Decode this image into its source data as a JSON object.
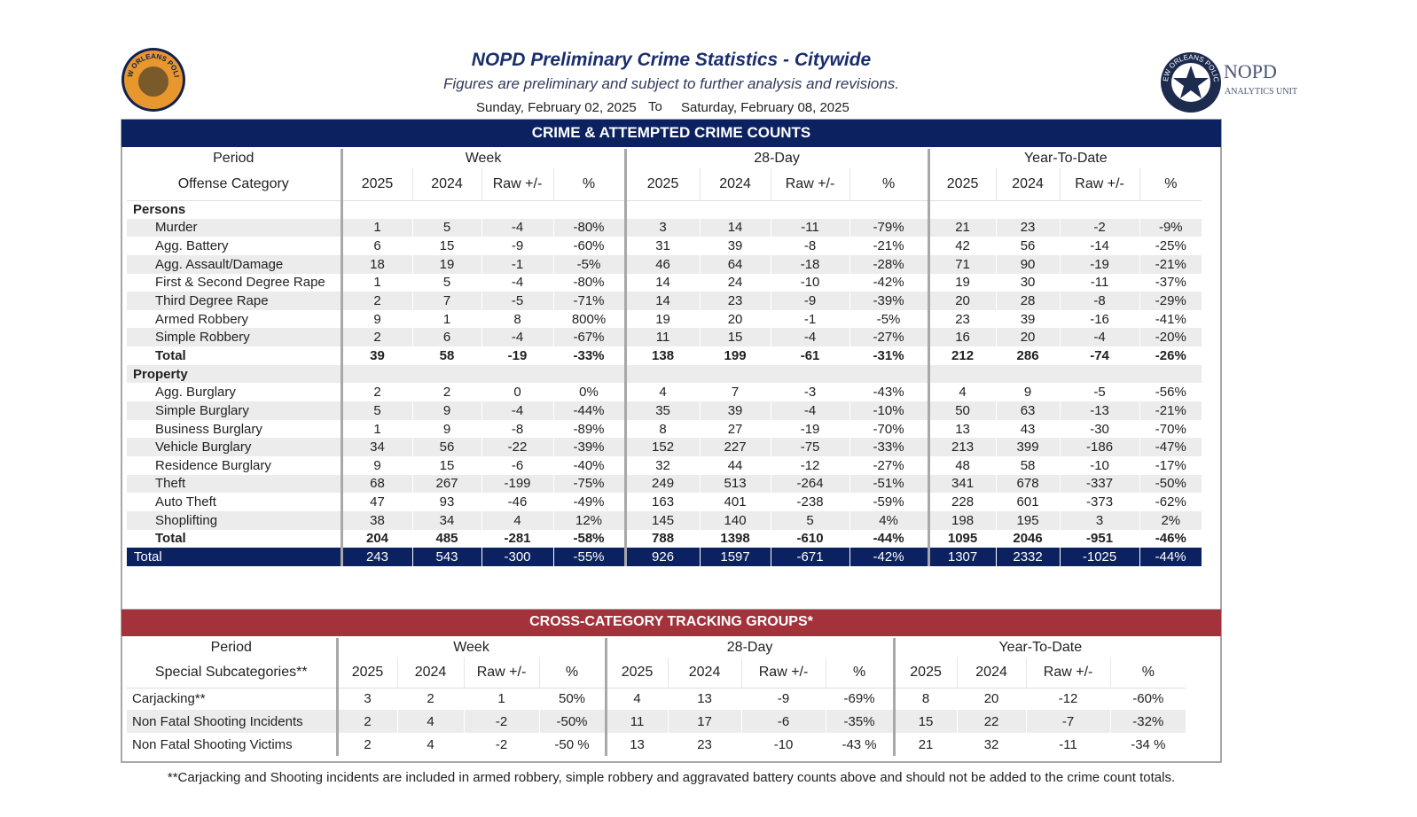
{
  "header": {
    "title": "NOPD Preliminary Crime Statistics - Citywide",
    "subtitle": "Figures are preliminary and subject to further analysis and revisions.",
    "date_from": "Sunday, February 02, 2025",
    "date_sep": "To",
    "date_to": "Saturday, February 08, 2025",
    "left_logo": "NEW ORLEANS POLICE",
    "right_logo_ring": "NEW ORLEANS POLICE",
    "right_logo_name": "NOPD",
    "right_logo_unit": "ANALYTICS UNIT"
  },
  "crime_table": {
    "title": "CRIME & ATTEMPTED CRIME COUNTS",
    "period_label": "Period",
    "category_label": "Offense Category",
    "periods": [
      "Week",
      "28-Day",
      "Year-To-Date"
    ],
    "columns": [
      "2025",
      "2024",
      "Raw +/-",
      "%"
    ],
    "sections": [
      {
        "name": "Persons",
        "rows": [
          {
            "label": "Murder",
            "values": [
              "1",
              "5",
              "-4",
              "-80%",
              "3",
              "14",
              "-11",
              "-79%",
              "21",
              "23",
              "-2",
              "-9%"
            ]
          },
          {
            "label": "Agg. Battery",
            "values": [
              "6",
              "15",
              "-9",
              "-60%",
              "31",
              "39",
              "-8",
              "-21%",
              "42",
              "56",
              "-14",
              "-25%"
            ]
          },
          {
            "label": "Agg. Assault/Damage",
            "values": [
              "18",
              "19",
              "-1",
              "-5%",
              "46",
              "64",
              "-18",
              "-28%",
              "71",
              "90",
              "-19",
              "-21%"
            ]
          },
          {
            "label": "First & Second Degree Rape",
            "values": [
              "1",
              "5",
              "-4",
              "-80%",
              "14",
              "24",
              "-10",
              "-42%",
              "19",
              "30",
              "-11",
              "-37%"
            ]
          },
          {
            "label": "Third Degree Rape",
            "values": [
              "2",
              "7",
              "-5",
              "-71%",
              "14",
              "23",
              "-9",
              "-39%",
              "20",
              "28",
              "-8",
              "-29%"
            ]
          },
          {
            "label": "Armed Robbery",
            "values": [
              "9",
              "1",
              "8",
              "800%",
              "19",
              "20",
              "-1",
              "-5%",
              "23",
              "39",
              "-16",
              "-41%"
            ]
          },
          {
            "label": "Simple Robbery",
            "values": [
              "2",
              "6",
              "-4",
              "-67%",
              "11",
              "15",
              "-4",
              "-27%",
              "16",
              "20",
              "-4",
              "-20%"
            ]
          }
        ],
        "total": {
          "label": "Total",
          "values": [
            "39",
            "58",
            "-19",
            "-33%",
            "138",
            "199",
            "-61",
            "-31%",
            "212",
            "286",
            "-74",
            "-26%"
          ]
        }
      },
      {
        "name": "Property",
        "rows": [
          {
            "label": "Agg. Burglary",
            "values": [
              "2",
              "2",
              "0",
              "0%",
              "4",
              "7",
              "-3",
              "-43%",
              "4",
              "9",
              "-5",
              "-56%"
            ]
          },
          {
            "label": "Simple Burglary",
            "values": [
              "5",
              "9",
              "-4",
              "-44%",
              "35",
              "39",
              "-4",
              "-10%",
              "50",
              "63",
              "-13",
              "-21%"
            ]
          },
          {
            "label": "Business Burglary",
            "values": [
              "1",
              "9",
              "-8",
              "-89%",
              "8",
              "27",
              "-19",
              "-70%",
              "13",
              "43",
              "-30",
              "-70%"
            ]
          },
          {
            "label": "Vehicle Burglary",
            "values": [
              "34",
              "56",
              "-22",
              "-39%",
              "152",
              "227",
              "-75",
              "-33%",
              "213",
              "399",
              "-186",
              "-47%"
            ]
          },
          {
            "label": "Residence Burglary",
            "values": [
              "9",
              "15",
              "-6",
              "-40%",
              "32",
              "44",
              "-12",
              "-27%",
              "48",
              "58",
              "-10",
              "-17%"
            ]
          },
          {
            "label": "Theft",
            "values": [
              "68",
              "267",
              "-199",
              "-75%",
              "249",
              "513",
              "-264",
              "-51%",
              "341",
              "678",
              "-337",
              "-50%"
            ]
          },
          {
            "label": "Auto Theft",
            "values": [
              "47",
              "93",
              "-46",
              "-49%",
              "163",
              "401",
              "-238",
              "-59%",
              "228",
              "601",
              "-373",
              "-62%"
            ]
          },
          {
            "label": "Shoplifting",
            "values": [
              "38",
              "34",
              "4",
              "12%",
              "145",
              "140",
              "5",
              "4%",
              "198",
              "195",
              "3",
              "2%"
            ]
          }
        ],
        "total": {
          "label": "Total",
          "values": [
            "204",
            "485",
            "-281",
            "-58%",
            "788",
            "1398",
            "-610",
            "-44%",
            "1095",
            "2046",
            "-951",
            "-46%"
          ]
        }
      }
    ],
    "grand_total": {
      "label": "Total",
      "values": [
        "243",
        "543",
        "-300",
        "-55%",
        "926",
        "1597",
        "-671",
        "-42%",
        "1307",
        "2332",
        "-1025",
        "-44%"
      ]
    }
  },
  "tracking_table": {
    "title": "CROSS-CATEGORY TRACKING GROUPS*",
    "period_label": "Period",
    "category_label": "Special Subcategories**",
    "periods": [
      "Week",
      "28-Day",
      "Year-To-Date"
    ],
    "columns": [
      "2025",
      "2024",
      "Raw +/-",
      "%"
    ],
    "rows": [
      {
        "label": "Carjacking**",
        "values": [
          "3",
          "2",
          "1",
          "50%",
          "4",
          "13",
          "-9",
          "-69%",
          "8",
          "20",
          "-12",
          "-60%"
        ]
      },
      {
        "label": "Non Fatal Shooting Incidents",
        "values": [
          "2",
          "4",
          "-2",
          "-50%",
          "11",
          "17",
          "-6",
          "-35%",
          "15",
          "22",
          "-7",
          "-32%"
        ]
      },
      {
        "label": "Non Fatal Shooting Victims",
        "values": [
          "2",
          "4",
          "-2",
          "-50 %",
          "13",
          "23",
          "-10",
          "-43 %",
          "21",
          "32",
          "-11",
          "-34 %"
        ]
      }
    ]
  },
  "footnote": "**Carjacking and Shooting incidents are included in armed robbery, simple robbery and aggravated battery counts above and should not be added to the crime count totals."
}
